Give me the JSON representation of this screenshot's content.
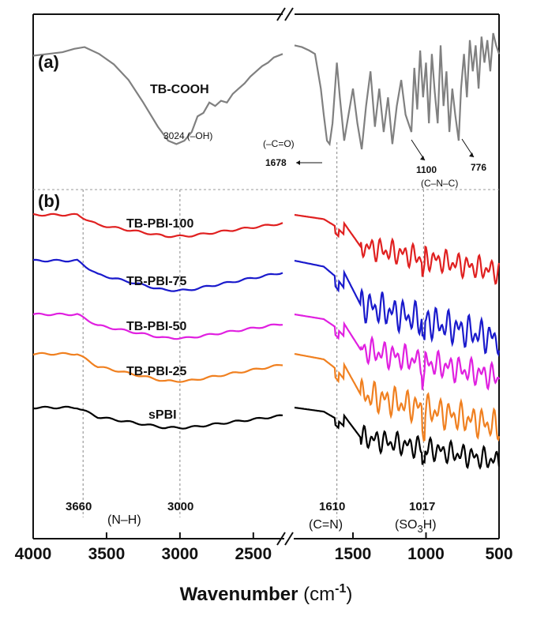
{
  "chart_data": {
    "type": "line",
    "xlabel": "Wavenumber",
    "xunit_base": "(cm",
    "xunit_exp": "-1",
    "xunit_close": ")",
    "x_segments": [
      [
        4000,
        2300
      ],
      [
        1900,
        500
      ]
    ],
    "xtick_labels": [
      "4000",
      "3500",
      "3000",
      "2500",
      "1500",
      "1000",
      "500"
    ],
    "xticks": [
      4000,
      3500,
      3000,
      2500,
      1500,
      1000,
      500
    ],
    "panels": [
      {
        "label": "(a)",
        "series": [
          {
            "name": "TB-COOH",
            "color": "#808080",
            "x": [
              4000,
              3900,
              3800,
              3720,
              3650,
              3550,
              3450,
              3350,
              3250,
              3150,
              3080,
              3024,
              2970,
              2920,
              2880,
              2840,
              2800,
              2760,
              2720,
              2680,
              2640,
              2600,
              2560,
              2520,
              2480,
              2440,
              2400,
              2360,
              2300,
              1900,
              1850,
              1800,
              1760,
              1720,
              1700,
              1678,
              1660,
              1640,
              1610,
              1590,
              1560,
              1530,
              1500,
              1470,
              1440,
              1410,
              1380,
              1350,
              1320,
              1290,
              1260,
              1230,
              1200,
              1170,
              1140,
              1100,
              1080,
              1060,
              1040,
              1020,
              1000,
              980,
              960,
              940,
              920,
              900,
              880,
              860,
              840,
              820,
              800,
              776,
              760,
              740,
              720,
              700,
              680,
              660,
              640,
              620,
              600,
              580,
              560,
              540,
              520,
              500
            ],
            "y": [
              79,
              80,
              81,
              83,
              84,
              80,
              74,
              65,
              52,
              38,
              30,
              28,
              30,
              35,
              44,
              46,
              52,
              50,
              53,
              52,
              57,
              60,
              63,
              67,
              70,
              73,
              75,
              78,
              80,
              85,
              84,
              82,
              80,
              60,
              45,
              30,
              28,
              40,
              75,
              55,
              30,
              45,
              60,
              40,
              25,
              50,
              70,
              38,
              60,
              35,
              55,
              28,
              50,
              65,
              45,
              35,
              72,
              48,
              82,
              55,
              75,
              40,
              80,
              58,
              40,
              85,
              50,
              70,
              35,
              60,
              45,
              30,
              60,
              80,
              55,
              88,
              70,
              85,
              60,
              90,
              75,
              88,
              70,
              92,
              85,
              80
            ]
          }
        ],
        "annotations": [
          {
            "text": "3024",
            "sub": "(–OH)"
          },
          {
            "text": "(–C=O)"
          },
          {
            "text": "1678"
          },
          {
            "text": "1100"
          },
          {
            "text": "(C–N–C)"
          },
          {
            "text": "776"
          }
        ]
      },
      {
        "label": "(b)",
        "series": [
          {
            "name": "TB-PBI-100",
            "color": "#e02020"
          },
          {
            "name": "TB-PBI-75",
            "color": "#1a1acc"
          },
          {
            "name": "TB-PBI-50",
            "color": "#e020e0"
          },
          {
            "name": "TB-PBI-25",
            "color": "#f08020"
          },
          {
            "name": "sPBI",
            "color": "#000000"
          }
        ],
        "reference_lines": [
          3660,
          3000,
          1610,
          1017
        ],
        "annotations": [
          {
            "text": "3660"
          },
          {
            "text": "(N–H)"
          },
          {
            "text": "3000"
          },
          {
            "text": "1610"
          },
          {
            "text": "(C=N)"
          },
          {
            "text": "1017"
          },
          {
            "text": "(SO",
            "sub": "3",
            "tail": "H)"
          }
        ]
      }
    ],
    "grid": false
  }
}
